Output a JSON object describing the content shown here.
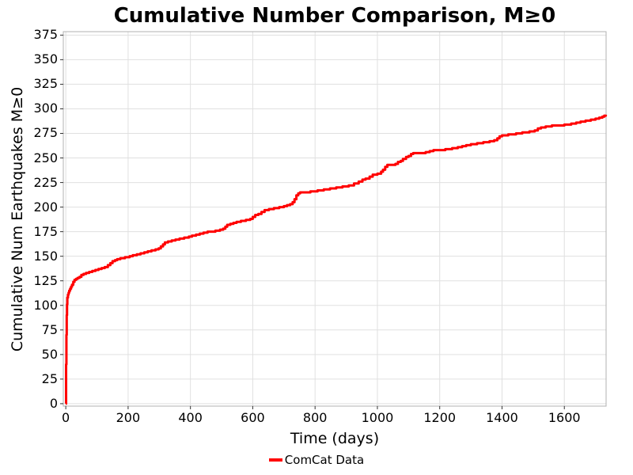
{
  "figure": {
    "background": "#ffffff"
  },
  "colors": {
    "line": "#ff0000",
    "grid": "#e0e0e0",
    "axis_border": "#b0b0b0",
    "tick": "#333333",
    "text": "#000000"
  },
  "legend": {
    "items": [
      {
        "label": "ComCat Data",
        "color": "#ff0000"
      }
    ]
  },
  "chart_data": {
    "type": "line",
    "style": "cumulative step curve",
    "title": "Cumulative Number Comparison, M≥0",
    "xlabel": "Time (days)",
    "ylabel": "Cumulative Num Earthquakes M≥0",
    "xlim": [
      -8,
      1734
    ],
    "ylim": [
      -2.5,
      378.5
    ],
    "x_ticks": [
      0,
      200,
      400,
      600,
      800,
      1000,
      1200,
      1400,
      1600
    ],
    "y_ticks": [
      0,
      25,
      50,
      75,
      100,
      125,
      150,
      175,
      200,
      225,
      250,
      275,
      300,
      325,
      350,
      375
    ],
    "grid": true,
    "legend_position": "bottom-center",
    "series": [
      {
        "name": "ComCat Data",
        "color": "#ff0000",
        "line_width": 3,
        "points": [
          [
            0,
            0
          ],
          [
            1,
            40
          ],
          [
            2,
            70
          ],
          [
            3,
            90
          ],
          [
            4,
            101
          ],
          [
            5,
            108
          ],
          [
            7,
            111
          ],
          [
            9,
            113
          ],
          [
            11,
            115
          ],
          [
            14,
            117
          ],
          [
            17,
            119
          ],
          [
            20,
            121
          ],
          [
            24,
            124
          ],
          [
            28,
            126
          ],
          [
            33,
            127
          ],
          [
            38,
            128
          ],
          [
            44,
            129
          ],
          [
            50,
            131
          ],
          [
            57,
            132
          ],
          [
            65,
            133
          ],
          [
            75,
            134
          ],
          [
            85,
            135
          ],
          [
            95,
            136
          ],
          [
            105,
            137
          ],
          [
            115,
            138
          ],
          [
            125,
            139
          ],
          [
            135,
            141
          ],
          [
            143,
            143
          ],
          [
            150,
            145
          ],
          [
            158,
            146
          ],
          [
            165,
            147
          ],
          [
            175,
            148
          ],
          [
            190,
            149
          ],
          [
            205,
            150
          ],
          [
            215,
            151
          ],
          [
            228,
            152
          ],
          [
            240,
            153
          ],
          [
            252,
            154
          ],
          [
            263,
            155
          ],
          [
            275,
            156
          ],
          [
            288,
            157
          ],
          [
            298,
            158
          ],
          [
            305,
            160
          ],
          [
            312,
            162
          ],
          [
            318,
            164
          ],
          [
            328,
            165
          ],
          [
            340,
            166
          ],
          [
            352,
            167
          ],
          [
            365,
            168
          ],
          [
            380,
            169
          ],
          [
            395,
            170
          ],
          [
            405,
            171
          ],
          [
            418,
            172
          ],
          [
            430,
            173
          ],
          [
            442,
            174
          ],
          [
            455,
            175
          ],
          [
            480,
            176
          ],
          [
            495,
            177
          ],
          [
            505,
            178
          ],
          [
            512,
            180
          ],
          [
            518,
            182
          ],
          [
            528,
            183
          ],
          [
            538,
            184
          ],
          [
            548,
            185
          ],
          [
            562,
            186
          ],
          [
            578,
            187
          ],
          [
            592,
            188
          ],
          [
            600,
            190
          ],
          [
            608,
            192
          ],
          [
            618,
            193
          ],
          [
            628,
            195
          ],
          [
            638,
            197
          ],
          [
            652,
            198
          ],
          [
            668,
            199
          ],
          [
            685,
            200
          ],
          [
            700,
            201
          ],
          [
            710,
            202
          ],
          [
            720,
            203
          ],
          [
            728,
            205
          ],
          [
            734,
            208
          ],
          [
            740,
            212
          ],
          [
            746,
            214
          ],
          [
            752,
            215
          ],
          [
            785,
            216
          ],
          [
            808,
            217
          ],
          [
            828,
            218
          ],
          [
            848,
            219
          ],
          [
            868,
            220
          ],
          [
            888,
            221
          ],
          [
            908,
            222
          ],
          [
            925,
            224
          ],
          [
            940,
            226
          ],
          [
            952,
            228
          ],
          [
            962,
            229
          ],
          [
            975,
            231
          ],
          [
            985,
            233
          ],
          [
            1000,
            234
          ],
          [
            1012,
            236
          ],
          [
            1018,
            238
          ],
          [
            1025,
            241
          ],
          [
            1032,
            243
          ],
          [
            1058,
            244
          ],
          [
            1066,
            246
          ],
          [
            1075,
            247
          ],
          [
            1082,
            249
          ],
          [
            1092,
            251
          ],
          [
            1100,
            252
          ],
          [
            1108,
            254
          ],
          [
            1115,
            255
          ],
          [
            1155,
            256
          ],
          [
            1168,
            257
          ],
          [
            1180,
            258
          ],
          [
            1218,
            259
          ],
          [
            1240,
            260
          ],
          [
            1258,
            261
          ],
          [
            1272,
            262
          ],
          [
            1285,
            263
          ],
          [
            1300,
            264
          ],
          [
            1320,
            265
          ],
          [
            1340,
            266
          ],
          [
            1360,
            267
          ],
          [
            1375,
            268
          ],
          [
            1385,
            270
          ],
          [
            1392,
            272
          ],
          [
            1400,
            273
          ],
          [
            1420,
            274
          ],
          [
            1445,
            275
          ],
          [
            1465,
            276
          ],
          [
            1488,
            277
          ],
          [
            1505,
            278
          ],
          [
            1515,
            280
          ],
          [
            1525,
            281
          ],
          [
            1540,
            282
          ],
          [
            1560,
            283
          ],
          [
            1600,
            284
          ],
          [
            1622,
            285
          ],
          [
            1638,
            286
          ],
          [
            1652,
            287
          ],
          [
            1668,
            288
          ],
          [
            1685,
            289
          ],
          [
            1700,
            290
          ],
          [
            1712,
            291
          ],
          [
            1722,
            292
          ],
          [
            1728,
            293
          ],
          [
            1733,
            294
          ]
        ]
      }
    ]
  }
}
